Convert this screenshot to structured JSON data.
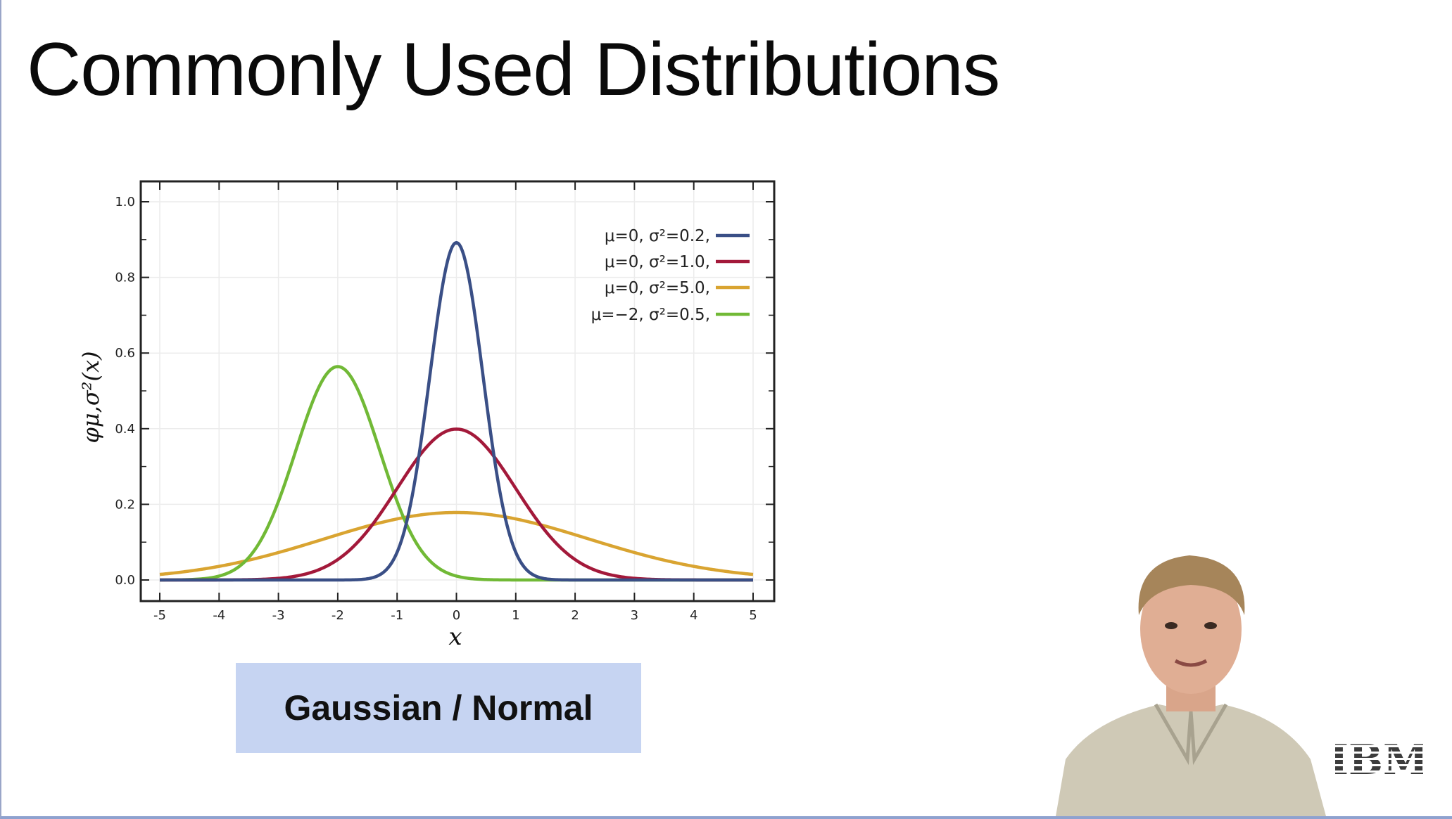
{
  "slide": {
    "title": "Commonly Used Distributions",
    "caption": "Gaussian / Normal",
    "logo_text": "IBM"
  },
  "chart_data": {
    "type": "line",
    "title": "",
    "xlabel": "x",
    "ylabel": "φμ,σ²(x)",
    "xlim": [
      -5,
      5
    ],
    "ylim": [
      0,
      1.0
    ],
    "xticks": [
      "-5",
      "-4",
      "-3",
      "-2",
      "-1",
      "0",
      "1",
      "2",
      "3",
      "4",
      "5"
    ],
    "yticks": [
      "0.0",
      "0.2",
      "0.4",
      "0.6",
      "0.8",
      "1.0"
    ],
    "grid": true,
    "legend_position": "top-right",
    "series": [
      {
        "name": "μ=0,   σ²=0.2,",
        "mu": 0,
        "variance": 0.2,
        "color": "#3a4f86"
      },
      {
        "name": "μ=0,   σ²=1.0,",
        "mu": 0,
        "variance": 1.0,
        "color": "#a3193a"
      },
      {
        "name": "μ=0,   σ²=5.0,",
        "mu": 0,
        "variance": 5.0,
        "color": "#d9a431"
      },
      {
        "name": "μ=−2, σ²=0.5,",
        "mu": -2,
        "variance": 0.5,
        "color": "#71b936"
      }
    ]
  }
}
